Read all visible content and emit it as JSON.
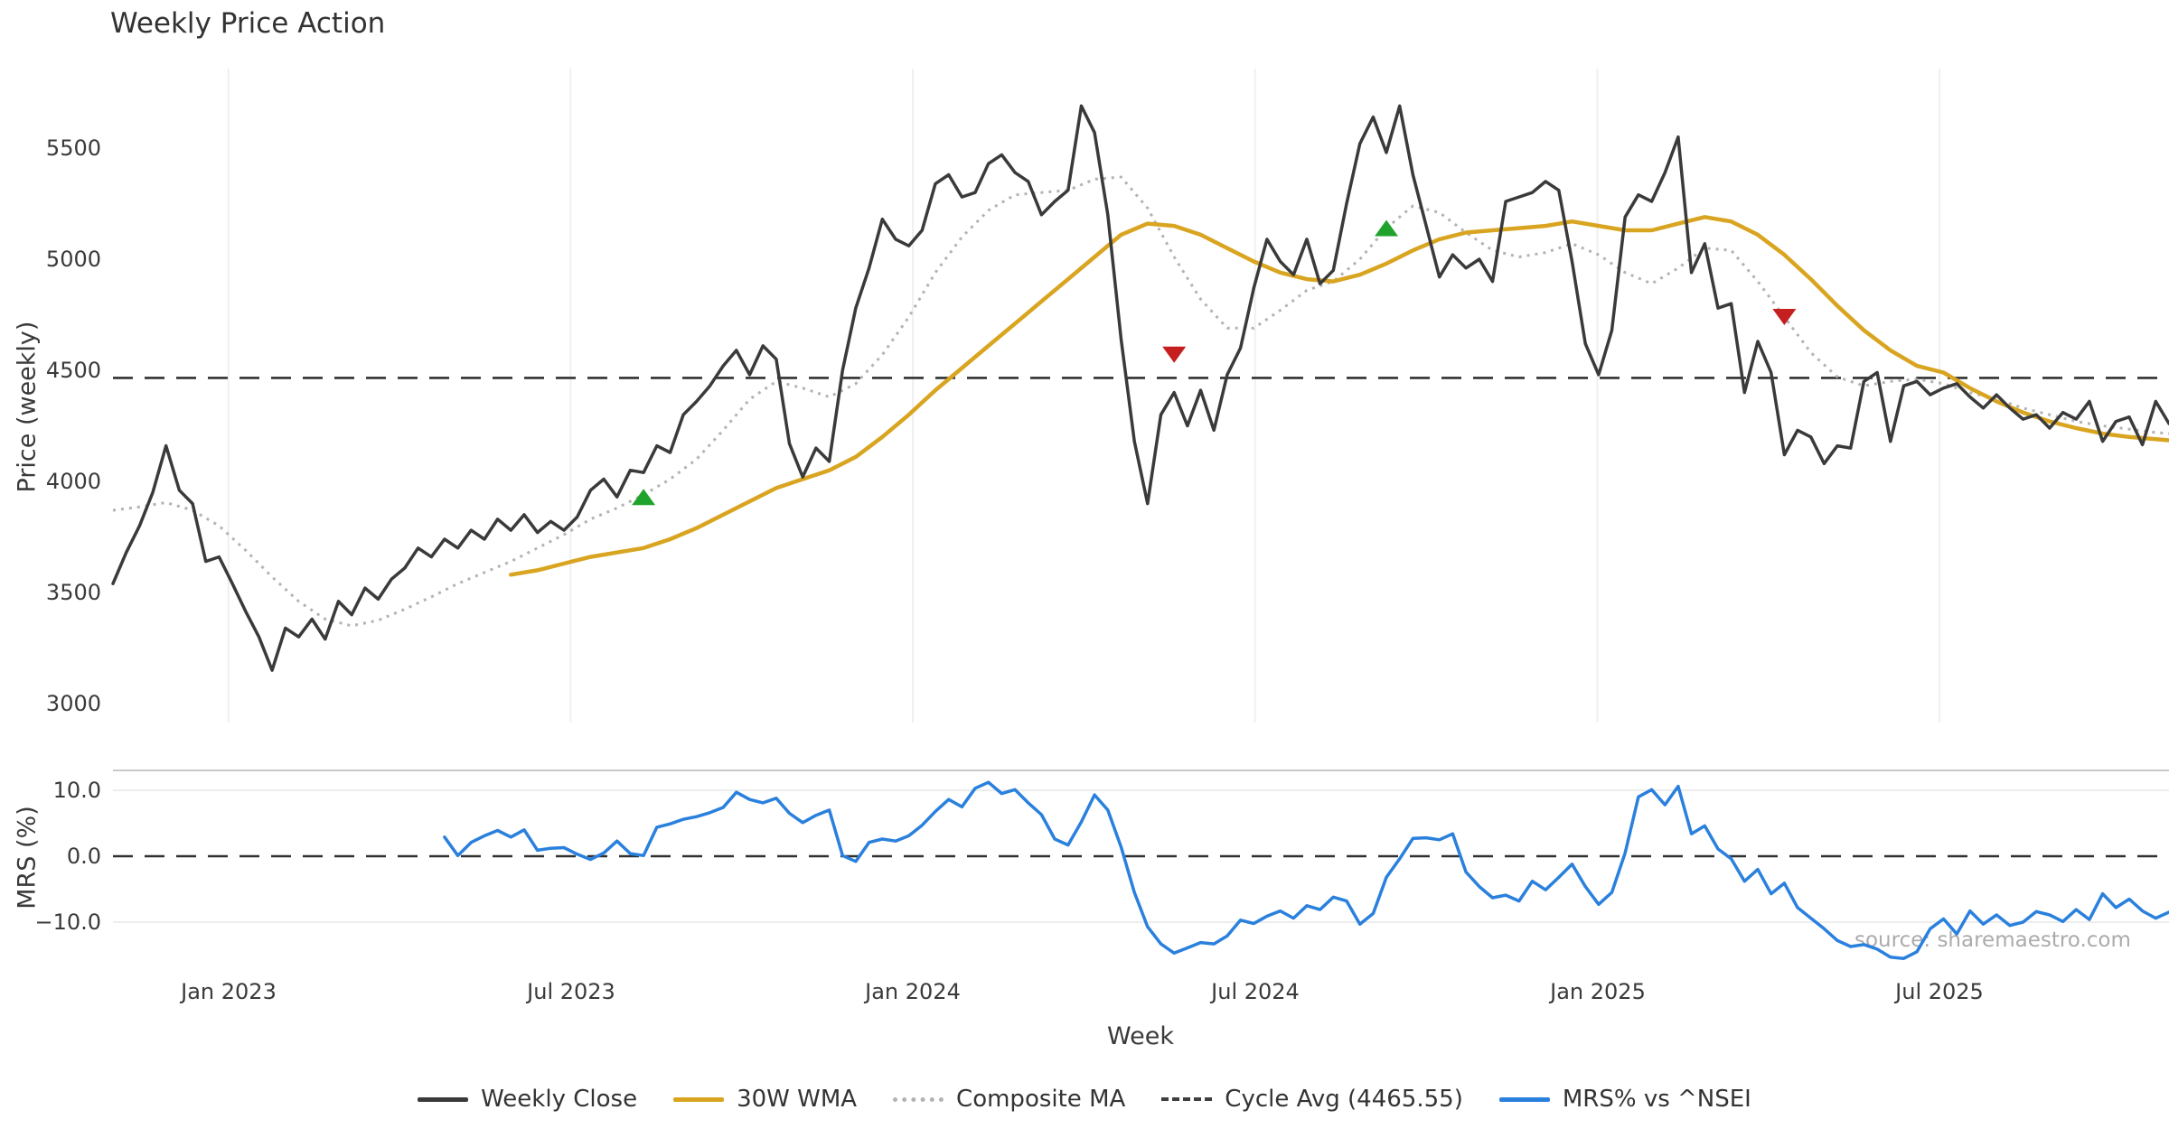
{
  "title": "Weekly Price Action",
  "watermark": "source: sharemaestro.com",
  "legend": {
    "items": [
      {
        "label": "Weekly Close",
        "style": "solid",
        "color": "#3a3a3a"
      },
      {
        "label": "30W WMA",
        "style": "solid",
        "color": "#d9a521"
      },
      {
        "label": "Composite MA",
        "style": "dotted",
        "color": "#b3b3b3"
      },
      {
        "label": "Cycle Avg (4465.55)",
        "style": "dashed",
        "color": "#3f3f3f"
      },
      {
        "label": "MRS% vs ^NSEI",
        "style": "solid",
        "color": "#2a80dd"
      }
    ]
  },
  "chart_data": {
    "type": "line",
    "title": "Weekly Price Action",
    "x_axis": {
      "label": "Week",
      "tick_labels": [
        "Jan 2023",
        "Jul 2023",
        "Jan 2024",
        "Jul 2024",
        "Jan 2025",
        "Jul 2025"
      ],
      "tick_week_positions": [
        8.7,
        34.5,
        60.3,
        86.1,
        111.9,
        137.7
      ],
      "total_weeks": 155
    },
    "panels": [
      {
        "name": "price",
        "ylabel": "Price (weekly)",
        "ylim": [
          2950,
          5760
        ],
        "y_ticks": [
          5500,
          5000,
          4500,
          4000,
          3500,
          3000
        ],
        "y_tick_labels": [
          "5500",
          "5000",
          "4500",
          "4000",
          "3500",
          "3000"
        ],
        "grid": "vertical",
        "cycle_avg": {
          "name": "Cycle Avg",
          "value": 4465.55,
          "color": "#303030"
        },
        "weekly_close": {
          "name": "Weekly Close",
          "color": "#3a3a3a",
          "start_week": 0,
          "values": [
            3540,
            3680,
            3800,
            3950,
            4160,
            3960,
            3900,
            3640,
            3660,
            3540,
            3415,
            3300,
            3150,
            3340,
            3300,
            3380,
            3290,
            3460,
            3400,
            3520,
            3470,
            3560,
            3610,
            3700,
            3660,
            3740,
            3700,
            3780,
            3740,
            3830,
            3780,
            3850,
            3770,
            3820,
            3780,
            3840,
            3960,
            4010,
            3930,
            4050,
            4040,
            4160,
            4130,
            4300,
            4360,
            4430,
            4520,
            4590,
            4480,
            4610,
            4550,
            4170,
            4020,
            4150,
            4090,
            4500,
            4780,
            4960,
            5180,
            5090,
            5060,
            5130,
            5340,
            5380,
            5280,
            5300,
            5430,
            5470,
            5390,
            5350,
            5200,
            5260,
            5310,
            5690,
            5570,
            5200,
            4640,
            4180,
            3900,
            4300,
            4400,
            4250,
            4410,
            4230,
            4480,
            4600,
            4870,
            5090,
            4990,
            4930,
            5090,
            4890,
            4950,
            5250,
            5520,
            5640,
            5480,
            5690,
            5380,
            5150,
            4920,
            5020,
            4960,
            5000,
            4900,
            5260,
            5280,
            5300,
            5350,
            5310,
            4990,
            4620,
            4480,
            4680,
            5190,
            5290,
            5260,
            5390,
            5550,
            4940,
            5070,
            4780,
            4800,
            4400,
            4630,
            4490,
            4120,
            4230,
            4200,
            4080,
            4160,
            4150,
            4450,
            4490,
            4180,
            4430,
            4450,
            4390,
            4420,
            4440,
            4380,
            4330,
            4390,
            4330,
            4280,
            4300,
            4240,
            4310,
            4280,
            4360,
            4180,
            4270,
            4290,
            4165,
            4360,
            4260
          ]
        },
        "wma_30w": {
          "name": "30W WMA",
          "color": "#d9a521",
          "points": [
            [
              30,
              3580
            ],
            [
              32,
              3600
            ],
            [
              34,
              3630
            ],
            [
              36,
              3660
            ],
            [
              38,
              3680
            ],
            [
              40,
              3700
            ],
            [
              42,
              3740
            ],
            [
              44,
              3790
            ],
            [
              46,
              3850
            ],
            [
              48,
              3910
            ],
            [
              50,
              3970
            ],
            [
              52,
              4010
            ],
            [
              54,
              4050
            ],
            [
              56,
              4110
            ],
            [
              58,
              4200
            ],
            [
              60,
              4300
            ],
            [
              62,
              4410
            ],
            [
              64,
              4510
            ],
            [
              66,
              4610
            ],
            [
              68,
              4710
            ],
            [
              70,
              4810
            ],
            [
              72,
              4910
            ],
            [
              74,
              5010
            ],
            [
              76,
              5110
            ],
            [
              78,
              5160
            ],
            [
              80,
              5150
            ],
            [
              82,
              5110
            ],
            [
              84,
              5050
            ],
            [
              86,
              4990
            ],
            [
              88,
              4940
            ],
            [
              90,
              4910
            ],
            [
              92,
              4900
            ],
            [
              94,
              4930
            ],
            [
              96,
              4980
            ],
            [
              98,
              5040
            ],
            [
              100,
              5090
            ],
            [
              102,
              5120
            ],
            [
              104,
              5130
            ],
            [
              106,
              5140
            ],
            [
              108,
              5150
            ],
            [
              110,
              5170
            ],
            [
              112,
              5150
            ],
            [
              114,
              5130
            ],
            [
              116,
              5130
            ],
            [
              118,
              5160
            ],
            [
              120,
              5190
            ],
            [
              122,
              5170
            ],
            [
              124,
              5110
            ],
            [
              126,
              5020
            ],
            [
              128,
              4910
            ],
            [
              130,
              4790
            ],
            [
              132,
              4680
            ],
            [
              134,
              4590
            ],
            [
              136,
              4520
            ],
            [
              138,
              4490
            ],
            [
              140,
              4420
            ],
            [
              142,
              4360
            ],
            [
              144,
              4310
            ],
            [
              146,
              4270
            ],
            [
              148,
              4240
            ],
            [
              150,
              4215
            ],
            [
              152,
              4200
            ],
            [
              154,
              4190
            ],
            [
              155,
              4185
            ]
          ]
        },
        "composite_ma": {
          "name": "Composite MA",
          "color": "#b3b3b3",
          "points": [
            [
              0,
              3870
            ],
            [
              2,
              3885
            ],
            [
              4,
              3905
            ],
            [
              6,
              3870
            ],
            [
              8,
              3800
            ],
            [
              10,
              3690
            ],
            [
              12,
              3570
            ],
            [
              14,
              3460
            ],
            [
              16,
              3380
            ],
            [
              18,
              3350
            ],
            [
              20,
              3375
            ],
            [
              22,
              3425
            ],
            [
              24,
              3480
            ],
            [
              26,
              3540
            ],
            [
              28,
              3590
            ],
            [
              30,
              3640
            ],
            [
              32,
              3700
            ],
            [
              34,
              3760
            ],
            [
              36,
              3830
            ],
            [
              38,
              3880
            ],
            [
              40,
              3940
            ],
            [
              42,
              4010
            ],
            [
              44,
              4100
            ],
            [
              46,
              4230
            ],
            [
              48,
              4370
            ],
            [
              50,
              4450
            ],
            [
              52,
              4420
            ],
            [
              54,
              4380
            ],
            [
              56,
              4440
            ],
            [
              58,
              4570
            ],
            [
              60,
              4740
            ],
            [
              62,
              4940
            ],
            [
              64,
              5100
            ],
            [
              66,
              5220
            ],
            [
              68,
              5290
            ],
            [
              70,
              5300
            ],
            [
              72,
              5310
            ],
            [
              74,
              5360
            ],
            [
              76,
              5370
            ],
            [
              78,
              5230
            ],
            [
              80,
              5010
            ],
            [
              82,
              4820
            ],
            [
              84,
              4690
            ],
            [
              86,
              4690
            ],
            [
              88,
              4770
            ],
            [
              90,
              4860
            ],
            [
              92,
              4900
            ],
            [
              94,
              5000
            ],
            [
              96,
              5140
            ],
            [
              98,
              5240
            ],
            [
              100,
              5210
            ],
            [
              102,
              5120
            ],
            [
              104,
              5040
            ],
            [
              106,
              5010
            ],
            [
              108,
              5030
            ],
            [
              110,
              5070
            ],
            [
              112,
              5020
            ],
            [
              114,
              4940
            ],
            [
              116,
              4890
            ],
            [
              118,
              4960
            ],
            [
              120,
              5050
            ],
            [
              122,
              5040
            ],
            [
              124,
              4900
            ],
            [
              126,
              4740
            ],
            [
              128,
              4580
            ],
            [
              130,
              4470
            ],
            [
              132,
              4430
            ],
            [
              134,
              4450
            ],
            [
              136,
              4460
            ],
            [
              138,
              4440
            ],
            [
              140,
              4400
            ],
            [
              142,
              4370
            ],
            [
              144,
              4330
            ],
            [
              146,
              4300
            ],
            [
              148,
              4270
            ],
            [
              150,
              4250
            ],
            [
              152,
              4235
            ],
            [
              154,
              4220
            ],
            [
              155,
              4215
            ]
          ]
        },
        "markers": {
          "buy": {
            "shape": "triangle-up",
            "color": "#1fa32c",
            "points": [
              [
                40,
                3930
              ],
              [
                96,
                5140
              ]
            ]
          },
          "sell": {
            "shape": "triangle-down",
            "color": "#c51f1f",
            "points": [
              [
                80,
                4570
              ],
              [
                126,
                4740
              ]
            ]
          }
        }
      },
      {
        "name": "mrs",
        "ylabel": "MRS (%)",
        "ylim": [
          -16.5,
          13.0
        ],
        "y_ticks": [
          10.0,
          0.0,
          -10.0
        ],
        "y_tick_labels": [
          "10.0",
          "0.0",
          "−10.0"
        ],
        "grid": "horizontal",
        "zero_line": {
          "value": 0,
          "color": "#303030",
          "style": "dashed"
        },
        "mrs_series": {
          "name": "MRS% vs ^NSEI",
          "color": "#2a80dd",
          "start_week": 25,
          "values": [
            2.9,
            0.1,
            2.1,
            3.1,
            3.9,
            2.9,
            4.0,
            0.9,
            1.2,
            1.3,
            0.3,
            -0.5,
            0.5,
            2.3,
            0.4,
            0.1,
            4.4,
            4.9,
            5.6,
            6.0,
            6.6,
            7.4,
            9.7,
            8.6,
            8.1,
            8.8,
            6.5,
            5.1,
            6.2,
            7.0,
            0.1,
            -0.8,
            2.1,
            2.6,
            2.3,
            3.1,
            4.7,
            6.8,
            8.6,
            7.5,
            10.3,
            11.2,
            9.5,
            10.1,
            8.1,
            6.3,
            2.6,
            1.7,
            5.2,
            9.3,
            7.0,
            1.4,
            -5.5,
            -10.7,
            -13.3,
            -14.7,
            -13.9,
            -13.1,
            -13.3,
            -12.1,
            -9.7,
            -10.2,
            -9.1,
            -8.3,
            -9.4,
            -7.5,
            -8.1,
            -6.2,
            -6.8,
            -10.3,
            -8.7,
            -3.2,
            -0.4,
            2.7,
            2.8,
            2.5,
            3.4,
            -2.4,
            -4.6,
            -6.3,
            -5.9,
            -6.8,
            -3.8,
            -5.1,
            -3.2,
            -1.2,
            -4.6,
            -7.3,
            -5.5,
            0.5,
            9.0,
            10.1,
            7.8,
            10.6,
            3.4,
            4.6,
            1.1,
            -0.4,
            -3.8,
            -2.0,
            -5.7,
            -4.1,
            -7.8,
            -9.4,
            -11.0,
            -12.8,
            -13.7,
            -13.4,
            -14.1,
            -15.3,
            -15.5,
            -14.5,
            -11.0,
            -9.5,
            -11.8,
            -8.3,
            -10.3,
            -8.9,
            -10.5,
            -10.0,
            -8.4,
            -8.9,
            -9.9,
            -8.1,
            -9.6,
            -5.7,
            -7.8,
            -6.5,
            -8.3,
            -9.4,
            -8.5
          ]
        }
      }
    ]
  }
}
